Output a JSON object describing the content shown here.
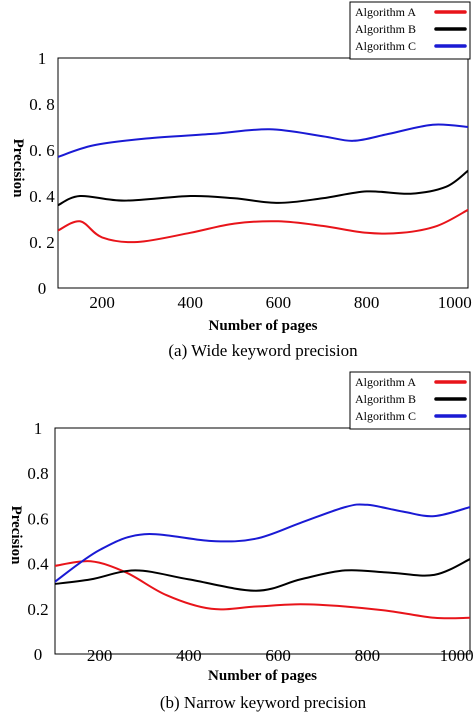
{
  "chart_data": [
    {
      "type": "line",
      "caption": "(a) Wide keyword precision",
      "xlabel": "Number of pages",
      "ylabel": "Precision",
      "xlim": [
        100,
        1030
      ],
      "ylim": [
        0,
        1
      ],
      "x_ticks": [
        200,
        400,
        600,
        800,
        1000
      ],
      "y_ticks": [
        {
          "value": 0,
          "label": "0"
        },
        {
          "value": 0.2,
          "label": "0. 2"
        },
        {
          "value": 0.4,
          "label": "0. 4"
        },
        {
          "value": 0.6,
          "label": "0. 6"
        },
        {
          "value": 0.8,
          "label": "0. 8"
        },
        {
          "value": 1,
          "label": "1"
        }
      ],
      "grid": false,
      "legend_position": "top-right",
      "series": [
        {
          "name": "Algorithm A",
          "color": "#e8141a",
          "x": [
            100,
            150,
            200,
            280,
            400,
            500,
            600,
            700,
            800,
            880,
            960,
            1030
          ],
          "y": [
            0.25,
            0.29,
            0.22,
            0.2,
            0.24,
            0.28,
            0.29,
            0.27,
            0.24,
            0.24,
            0.27,
            0.34
          ]
        },
        {
          "name": "Algorithm B",
          "color": "#000000",
          "x": [
            100,
            150,
            250,
            400,
            500,
            600,
            700,
            800,
            900,
            980,
            1030
          ],
          "y": [
            0.36,
            0.4,
            0.38,
            0.4,
            0.39,
            0.37,
            0.39,
            0.42,
            0.41,
            0.44,
            0.51
          ]
        },
        {
          "name": "Algorithm C",
          "color": "#1a1ad4",
          "x": [
            100,
            180,
            300,
            450,
            580,
            700,
            770,
            850,
            950,
            1030
          ],
          "y": [
            0.57,
            0.62,
            0.65,
            0.67,
            0.69,
            0.66,
            0.64,
            0.67,
            0.71,
            0.7
          ]
        }
      ]
    },
    {
      "type": "line",
      "caption": "(b) Narrow keyword precision",
      "xlabel": "Number of pages",
      "ylabel": "Precision",
      "xlim": [
        100,
        1030
      ],
      "ylim": [
        0,
        1
      ],
      "x_ticks": [
        200,
        400,
        600,
        800,
        1000
      ],
      "y_ticks": [
        {
          "value": 0,
          "label": "0"
        },
        {
          "value": 0.2,
          "label": "0.2"
        },
        {
          "value": 0.4,
          "label": "0.4"
        },
        {
          "value": 0.6,
          "label": "0.6"
        },
        {
          "value": 0.8,
          "label": "0.8"
        },
        {
          "value": 1,
          "label": "1"
        }
      ],
      "grid": false,
      "legend_position": "top-right",
      "series": [
        {
          "name": "Algorithm A",
          "color": "#e8141a",
          "x": [
            100,
            180,
            260,
            350,
            450,
            550,
            650,
            750,
            850,
            950,
            1030
          ],
          "y": [
            0.39,
            0.41,
            0.36,
            0.26,
            0.2,
            0.21,
            0.22,
            0.21,
            0.19,
            0.16,
            0.16
          ]
        },
        {
          "name": "Algorithm B",
          "color": "#000000",
          "x": [
            100,
            180,
            280,
            400,
            550,
            650,
            750,
            850,
            950,
            1030
          ],
          "y": [
            0.31,
            0.33,
            0.37,
            0.33,
            0.28,
            0.33,
            0.37,
            0.36,
            0.35,
            0.42
          ]
        },
        {
          "name": "Algorithm C",
          "color": "#1a1ad4",
          "x": [
            100,
            200,
            300,
            450,
            550,
            650,
            750,
            800,
            880,
            950,
            1030
          ],
          "y": [
            0.32,
            0.46,
            0.53,
            0.5,
            0.51,
            0.58,
            0.65,
            0.66,
            0.63,
            0.61,
            0.65
          ]
        }
      ]
    }
  ]
}
